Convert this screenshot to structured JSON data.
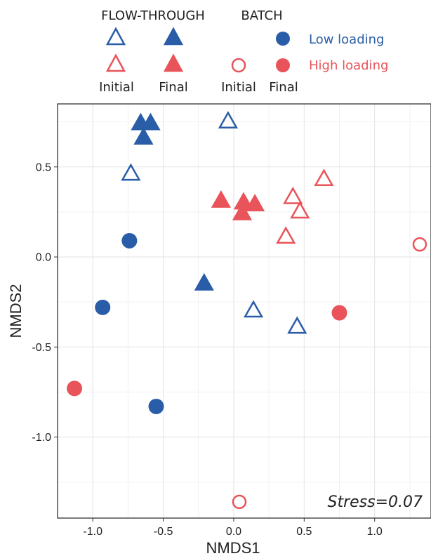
{
  "legend": {
    "group_flow": "FLOW-THROUGH",
    "group_batch": "BATCH",
    "col_initial_1": "Initial",
    "col_final_1": "Final",
    "col_initial_2": "Initial",
    "col_final_2": "Final",
    "low_label": "Low loading",
    "high_label": "High loading"
  },
  "colors": {
    "low": "#2a5da8",
    "high": "#e8545a"
  },
  "chart_data": {
    "type": "scatter",
    "xlabel": "NMDS1",
    "ylabel": "NMDS2",
    "xlim": [
      -1.25,
      1.4
    ],
    "ylim": [
      -1.45,
      0.85
    ],
    "xticks": [
      -1.0,
      -0.5,
      0.0,
      0.5,
      1.0
    ],
    "xtick_labels": [
      "-1.0",
      "-0.5",
      "0.0",
      "0.5",
      "1.0"
    ],
    "yticks": [
      0.5,
      0.0,
      -0.5,
      -1.0
    ],
    "ytick_labels": [
      "0.5",
      "0.0",
      "-0.5",
      "-1.0"
    ],
    "grid": true,
    "annotation": "Stress=0.07",
    "series": [
      {
        "name": "Low loading",
        "loading": "low",
        "method": "FLOW-THROUGH",
        "stage": "Initial",
        "marker": "triangle-open",
        "points": [
          [
            -0.04,
            0.75
          ],
          [
            -0.73,
            0.46
          ],
          [
            0.14,
            -0.3
          ],
          [
            0.45,
            -0.39
          ]
        ]
      },
      {
        "name": "Low loading",
        "loading": "low",
        "method": "FLOW-THROUGH",
        "stage": "Final",
        "marker": "triangle-filled",
        "points": [
          [
            -0.66,
            0.74
          ],
          [
            -0.59,
            0.74
          ],
          [
            -0.64,
            0.66
          ],
          [
            -0.21,
            -0.15
          ]
        ]
      },
      {
        "name": "Low loading",
        "loading": "low",
        "method": "BATCH",
        "stage": "Final",
        "marker": "circle-filled",
        "points": [
          [
            -0.74,
            0.09
          ],
          [
            -0.93,
            -0.28
          ],
          [
            -0.55,
            -0.83
          ]
        ]
      },
      {
        "name": "High loading",
        "loading": "high",
        "method": "FLOW-THROUGH",
        "stage": "Initial",
        "marker": "triangle-open",
        "points": [
          [
            0.64,
            0.43
          ],
          [
            0.42,
            0.33
          ],
          [
            0.47,
            0.25
          ],
          [
            0.37,
            0.11
          ]
        ]
      },
      {
        "name": "High loading",
        "loading": "high",
        "method": "FLOW-THROUGH",
        "stage": "Final",
        "marker": "triangle-filled",
        "points": [
          [
            -0.09,
            0.31
          ],
          [
            0.07,
            0.3
          ],
          [
            0.15,
            0.29
          ],
          [
            0.06,
            0.24
          ]
        ]
      },
      {
        "name": "High loading",
        "loading": "high",
        "method": "BATCH",
        "stage": "Initial",
        "marker": "circle-open",
        "points": [
          [
            1.32,
            0.07
          ],
          [
            0.04,
            -1.36
          ]
        ]
      },
      {
        "name": "High loading",
        "loading": "high",
        "method": "BATCH",
        "stage": "Final",
        "marker": "circle-filled",
        "points": [
          [
            0.75,
            -0.31
          ],
          [
            -1.13,
            -0.73
          ]
        ]
      }
    ]
  }
}
